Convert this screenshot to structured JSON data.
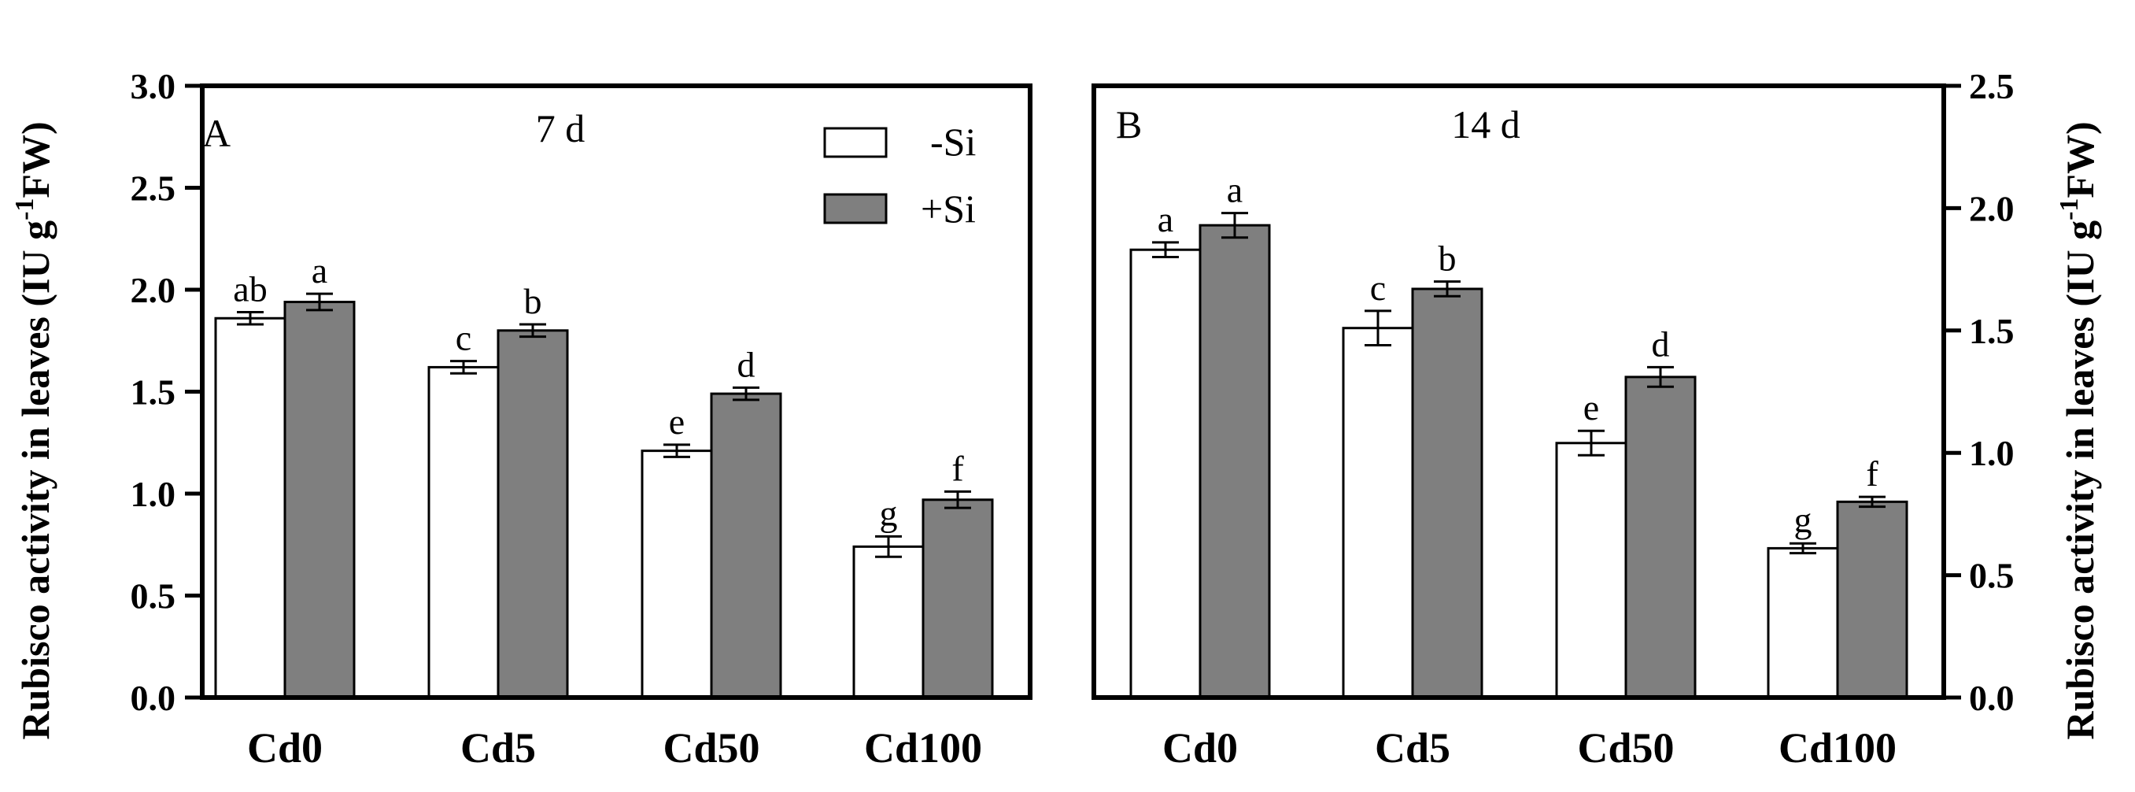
{
  "chart_data": [
    {
      "type": "bar",
      "panel_letter": "A",
      "title": "7 d",
      "categories": [
        "Cd0",
        "Cd5",
        "Cd50",
        "Cd100"
      ],
      "ylabel": "Rubisco activity in leaves (IU g-1FW)",
      "ylim": [
        0,
        3.0
      ],
      "yticks": [
        "0.0",
        "0.5",
        "1.0",
        "1.5",
        "2.0",
        "2.5",
        "3.0"
      ],
      "y_axis_side": "left",
      "grid": false,
      "legend_position": "top-right",
      "series": [
        {
          "name": "-Si",
          "color": "#ffffff",
          "values": [
            1.86,
            1.62,
            1.21,
            0.74
          ],
          "errors": [
            0.03,
            0.03,
            0.03,
            0.05
          ],
          "letters": [
            "ab",
            "c",
            "e",
            "g"
          ]
        },
        {
          "name": "+Si",
          "color": "#7f7f7f",
          "values": [
            1.94,
            1.8,
            1.49,
            0.97
          ],
          "errors": [
            0.04,
            0.03,
            0.03,
            0.04
          ],
          "letters": [
            "a",
            "b",
            "d",
            "f"
          ]
        }
      ]
    },
    {
      "type": "bar",
      "panel_letter": "B",
      "title": "14 d",
      "categories": [
        "Cd0",
        "Cd5",
        "Cd50",
        "Cd100"
      ],
      "ylabel": "Rubisco activity in leaves (IU g-1FW)",
      "ylim": [
        0,
        2.5
      ],
      "yticks": [
        "0.0",
        "0.5",
        "1.0",
        "1.5",
        "2.0",
        "2.5"
      ],
      "y_axis_side": "right",
      "grid": false,
      "series": [
        {
          "name": "-Si",
          "color": "#ffffff",
          "values": [
            1.83,
            1.51,
            1.04,
            0.61
          ],
          "errors": [
            0.03,
            0.07,
            0.05,
            0.02
          ],
          "letters": [
            "a",
            "c",
            "e",
            "g"
          ]
        },
        {
          "name": "+Si",
          "color": "#7f7f7f",
          "values": [
            1.93,
            1.67,
            1.31,
            0.8
          ],
          "errors": [
            0.05,
            0.03,
            0.04,
            0.02
          ],
          "letters": [
            "a",
            "b",
            "d",
            "f"
          ]
        }
      ]
    }
  ]
}
